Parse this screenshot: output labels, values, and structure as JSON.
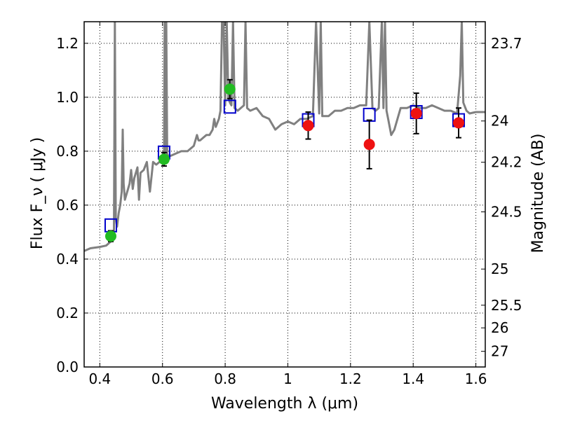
{
  "chart_data": {
    "type": "scatter",
    "xlabel": "Wavelength  λ (μm)",
    "ylabel": "Flux  F_ν  ( μJy )",
    "y2label": "Magnitude (AB)",
    "xlim": [
      0.35,
      1.63
    ],
    "ylim": [
      0.0,
      1.28
    ],
    "grid": true,
    "grid_style": "dotted",
    "x_ticks": [
      0.4,
      0.6,
      0.8,
      1.0,
      1.2,
      1.4,
      1.6
    ],
    "x_tick_labels": [
      "0.4",
      "0.6",
      "0.8",
      "1",
      "1.2",
      "1.4",
      "1.6"
    ],
    "y_ticks": [
      0.0,
      0.2,
      0.4,
      0.6,
      0.8,
      1.0,
      1.2
    ],
    "y_tick_labels": [
      "0.0",
      "0.2",
      "0.4",
      "0.6",
      "0.8",
      "1.0",
      "1.2"
    ],
    "y2_ticks": [
      {
        "label": "23.7",
        "flux": 1.2
      },
      {
        "label": "24",
        "flux": 0.912
      },
      {
        "label": "24.2",
        "flux": 0.759
      },
      {
        "label": "24.5",
        "flux": 0.575
      },
      {
        "label": "25",
        "flux": 0.363
      },
      {
        "label": "25.5",
        "flux": 0.229
      },
      {
        "label": "26",
        "flux": 0.145
      },
      {
        "label": "27",
        "flux": 0.058
      }
    ],
    "model_spectrum": {
      "color": "#808080",
      "points": [
        [
          0.35,
          0.43
        ],
        [
          0.37,
          0.44
        ],
        [
          0.4,
          0.445
        ],
        [
          0.42,
          0.45
        ],
        [
          0.43,
          0.46
        ],
        [
          0.44,
          0.47
        ],
        [
          0.445,
          0.5
        ],
        [
          0.448,
          1.28
        ],
        [
          0.451,
          0.55
        ],
        [
          0.455,
          0.52
        ],
        [
          0.46,
          0.57
        ],
        [
          0.465,
          0.6
        ],
        [
          0.47,
          0.65
        ],
        [
          0.473,
          0.88
        ],
        [
          0.476,
          0.68
        ],
        [
          0.48,
          0.62
        ],
        [
          0.49,
          0.66
        ],
        [
          0.495,
          0.68
        ],
        [
          0.5,
          0.73
        ],
        [
          0.505,
          0.66
        ],
        [
          0.51,
          0.7
        ],
        [
          0.52,
          0.74
        ],
        [
          0.525,
          0.62
        ],
        [
          0.53,
          0.72
        ],
        [
          0.54,
          0.73
        ],
        [
          0.55,
          0.76
        ],
        [
          0.56,
          0.65
        ],
        [
          0.57,
          0.76
        ],
        [
          0.58,
          0.75
        ],
        [
          0.59,
          0.76
        ],
        [
          0.6,
          0.765
        ],
        [
          0.605,
          0.78
        ],
        [
          0.607,
          1.28
        ],
        [
          0.609,
          0.78
        ],
        [
          0.612,
          1.28
        ],
        [
          0.615,
          0.79
        ],
        [
          0.62,
          0.78
        ],
        [
          0.64,
          0.79
        ],
        [
          0.66,
          0.8
        ],
        [
          0.68,
          0.8
        ],
        [
          0.7,
          0.82
        ],
        [
          0.71,
          0.86
        ],
        [
          0.715,
          0.84
        ],
        [
          0.72,
          0.84
        ],
        [
          0.73,
          0.85
        ],
        [
          0.74,
          0.86
        ],
        [
          0.75,
          0.86
        ],
        [
          0.76,
          0.88
        ],
        [
          0.765,
          0.92
        ],
        [
          0.77,
          0.89
        ],
        [
          0.78,
          0.92
        ],
        [
          0.785,
          0.95
        ],
        [
          0.79,
          1.28
        ],
        [
          0.795,
          1.28
        ],
        [
          0.8,
          0.97
        ],
        [
          0.805,
          1.28
        ],
        [
          0.81,
          1.0
        ],
        [
          0.815,
          0.98
        ],
        [
          0.82,
          0.97
        ],
        [
          0.825,
          1.28
        ],
        [
          0.83,
          0.96
        ],
        [
          0.84,
          0.95
        ],
        [
          0.85,
          0.96
        ],
        [
          0.86,
          0.97
        ],
        [
          0.865,
          1.28
        ],
        [
          0.87,
          0.96
        ],
        [
          0.88,
          0.95
        ],
        [
          0.9,
          0.96
        ],
        [
          0.92,
          0.93
        ],
        [
          0.94,
          0.92
        ],
        [
          0.96,
          0.88
        ],
        [
          0.98,
          0.9
        ],
        [
          1.0,
          0.91
        ],
        [
          1.02,
          0.9
        ],
        [
          1.04,
          0.92
        ],
        [
          1.06,
          0.92
        ],
        [
          1.08,
          0.93
        ],
        [
          1.09,
          1.28
        ],
        [
          1.1,
          0.94
        ],
        [
          1.105,
          1.28
        ],
        [
          1.11,
          0.93
        ],
        [
          1.13,
          0.93
        ],
        [
          1.15,
          0.95
        ],
        [
          1.17,
          0.95
        ],
        [
          1.19,
          0.96
        ],
        [
          1.21,
          0.96
        ],
        [
          1.23,
          0.97
        ],
        [
          1.25,
          0.97
        ],
        [
          1.26,
          1.28
        ],
        [
          1.27,
          0.96
        ],
        [
          1.28,
          0.95
        ],
        [
          1.29,
          0.96
        ],
        [
          1.3,
          1.28
        ],
        [
          1.305,
          0.96
        ],
        [
          1.31,
          1.28
        ],
        [
          1.315,
          0.95
        ],
        [
          1.32,
          0.92
        ],
        [
          1.33,
          0.86
        ],
        [
          1.34,
          0.88
        ],
        [
          1.36,
          0.96
        ],
        [
          1.38,
          0.96
        ],
        [
          1.4,
          0.97
        ],
        [
          1.42,
          0.96
        ],
        [
          1.44,
          0.96
        ],
        [
          1.46,
          0.97
        ],
        [
          1.48,
          0.96
        ],
        [
          1.5,
          0.95
        ],
        [
          1.52,
          0.95
        ],
        [
          1.54,
          0.94
        ],
        [
          1.55,
          1.08
        ],
        [
          1.555,
          1.28
        ],
        [
          1.56,
          0.98
        ],
        [
          1.57,
          0.95
        ],
        [
          1.58,
          0.94
        ],
        [
          1.6,
          0.945
        ],
        [
          1.63,
          0.945
        ]
      ]
    },
    "model_bands": {
      "color": "#0000cc",
      "marker": "open-square",
      "x": [
        0.435,
        0.605,
        0.815,
        1.065,
        1.26,
        1.41,
        1.545
      ],
      "y": [
        0.525,
        0.795,
        0.965,
        0.915,
        0.935,
        0.945,
        0.915
      ]
    },
    "observed_optical": {
      "color": "#22bb22",
      "marker": "filled-circle",
      "x": [
        0.435,
        0.605,
        0.815
      ],
      "y": [
        0.485,
        0.77,
        1.03
      ],
      "err": [
        0.02,
        0.025,
        0.035
      ]
    },
    "observed_nir": {
      "color": "#ee1111",
      "marker": "filled-circle",
      "x": [
        1.065,
        1.26,
        1.41,
        1.545
      ],
      "y": [
        0.895,
        0.825,
        0.94,
        0.905
      ],
      "err": [
        0.05,
        0.09,
        0.075,
        0.055
      ]
    }
  }
}
